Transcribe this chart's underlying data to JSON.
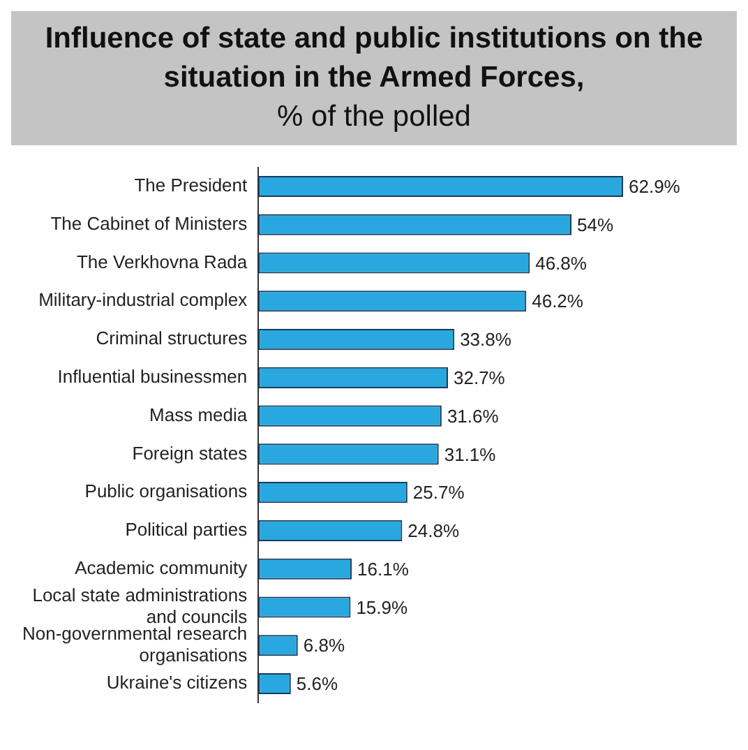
{
  "chart_data": {
    "type": "bar",
    "orientation": "horizontal",
    "title": "Influence of state and public institutions on the situation in the Armed Forces,",
    "subtitle": "% of the polled",
    "categories": [
      "The President",
      "The Cabinet of Ministers",
      "The Verkhovna Rada",
      "Military-industrial complex",
      "Criminal structures",
      "Influential businessmen",
      "Mass media",
      "Foreign states",
      "Public organisations",
      "Political parties",
      "Academic community",
      "Local state administrations and councils",
      "Non-governmental research organisations",
      "Ukraine's citizens"
    ],
    "values": [
      62.9,
      54,
      46.8,
      46.2,
      33.8,
      32.7,
      31.6,
      31.1,
      25.7,
      24.8,
      16.1,
      15.9,
      6.8,
      5.6
    ],
    "value_labels": [
      "62.9%",
      "54%",
      "46.8%",
      "46.2%",
      "33.8%",
      "32.7%",
      "31.6%",
      "31.1%",
      "25.7%",
      "24.8%",
      "16.1%",
      "15.9%",
      "6.8%",
      "5.6%"
    ],
    "color": "#29a8e0"
  }
}
